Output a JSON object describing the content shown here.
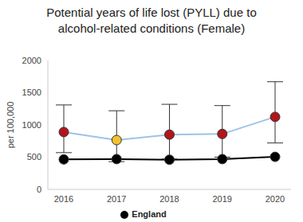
{
  "chart_data": {
    "type": "line",
    "title": "Potential years of life lost (PYLL) due to alcohol-related conditions (Female)",
    "y_label": "per 100,000",
    "categories": [
      "2016",
      "2017",
      "2018",
      "2019",
      "2020"
    ],
    "ylim": [
      0,
      2000
    ],
    "yticks": [
      0,
      500,
      1000,
      1500,
      2000
    ],
    "legend": "bottom",
    "series": [
      {
        "color": "#9dc3e6",
        "colors": [
          "#b3151b",
          "#f2c12e",
          "#b3151b",
          "#b3151b",
          "#b3151b"
        ],
        "marker": "circle",
        "values": [
          890,
          765,
          850,
          860,
          1125
        ],
        "lower": [
          570,
          430,
          470,
          500,
          720
        ],
        "upper": [
          1310,
          1220,
          1320,
          1300,
          1670
        ]
      },
      {
        "name": "England",
        "color": "#000000",
        "marker": "circle",
        "values": [
          465,
          470,
          460,
          470,
          505
        ]
      }
    ]
  }
}
